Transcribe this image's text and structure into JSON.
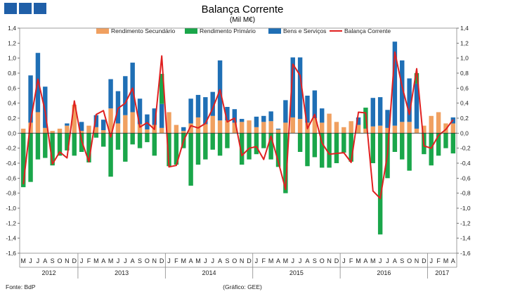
{
  "logo": {
    "color": "#1f5fa8",
    "blocks": 3
  },
  "chart_data": {
    "type": "bar",
    "stacked": true,
    "title": "Balança Corrente",
    "subtitle": "(Mil M€)",
    "ylim": [
      -1.6,
      1.4
    ],
    "yticks": [
      -1.6,
      -1.4,
      -1.2,
      -1.0,
      -0.8,
      -0.6,
      -0.4,
      -0.2,
      0.0,
      0.2,
      0.4,
      0.6,
      0.8,
      1.0,
      1.2,
      1.4
    ],
    "ytick_labels": [
      "-1,6",
      "-1,4",
      "-1,2",
      "-1,0",
      "-0,8",
      "-0,6",
      "-0,4",
      "-0,2",
      "0,0",
      "0,2",
      "0,4",
      "0,6",
      "0,8",
      "1,0",
      "1,2",
      "1,4"
    ],
    "categories": [
      "M",
      "J",
      "J",
      "A",
      "S",
      "O",
      "N",
      "D",
      "J",
      "F",
      "M",
      "A",
      "M",
      "J",
      "J",
      "A",
      "S",
      "O",
      "N",
      "D",
      "J",
      "F",
      "M",
      "A",
      "M",
      "J",
      "J",
      "A",
      "S",
      "O",
      "N",
      "D",
      "J",
      "F",
      "M",
      "A",
      "M",
      "J",
      "J",
      "A",
      "S",
      "O",
      "N",
      "D",
      "J",
      "F",
      "M",
      "A",
      "M",
      "J",
      "J",
      "A",
      "S",
      "O",
      "N",
      "D",
      "J",
      "F",
      "M",
      "A"
    ],
    "years": [
      {
        "label": "2012",
        "start": 0,
        "end": 7
      },
      {
        "label": "2013",
        "start": 8,
        "end": 19
      },
      {
        "label": "2014",
        "start": 20,
        "end": 31
      },
      {
        "label": "2015",
        "start": 32,
        "end": 43
      },
      {
        "label": "2016",
        "start": 44,
        "end": 55
      },
      {
        "label": "2017",
        "start": 56,
        "end": 59
      }
    ],
    "series": [
      {
        "name": "Rendimento Secundário",
        "color": "#f0a060",
        "values": [
          0.06,
          0.14,
          0.28,
          0.07,
          0.03,
          0.06,
          0.1,
          0.38,
          0.03,
          0.1,
          0.08,
          0.04,
          0.33,
          0.13,
          0.24,
          0.28,
          0.12,
          0.05,
          0.11,
          0.07,
          0.28,
          0.11,
          0.03,
          0.13,
          0.21,
          0.12,
          0.23,
          0.17,
          0.17,
          0.14,
          0.15,
          0.17,
          0.08,
          0.15,
          0.16,
          0.05,
          0.14,
          0.21,
          0.19,
          0.14,
          0.2,
          0.14,
          0.26,
          0.15,
          0.08,
          0.16,
          0.11,
          0.06,
          0.09,
          0.1,
          0.07,
          0.1,
          0.15,
          0.15,
          0.06,
          0.1,
          0.23,
          0.28,
          0.13,
          0.13
        ]
      },
      {
        "name": "Bens e Serviços",
        "color": "#1f6fb5",
        "values": [
          0.0,
          0.63,
          0.79,
          0.55,
          0.0,
          0.0,
          0.03,
          0.0,
          0.12,
          0.0,
          0.16,
          0.14,
          0.39,
          0.43,
          0.52,
          0.66,
          0.34,
          0.2,
          0.22,
          0.32,
          0.0,
          0.0,
          0.05,
          0.33,
          0.3,
          0.36,
          0.32,
          0.8,
          0.18,
          0.18,
          0.04,
          0.0,
          0.14,
          0.08,
          0.13,
          0.01,
          0.3,
          0.8,
          0.82,
          0.36,
          0.37,
          0.19,
          0.0,
          0.0,
          0.0,
          0.0,
          0.1,
          0.0,
          0.38,
          0.38,
          0.24,
          1.12,
          0.82,
          0.58,
          0.6,
          0.0,
          0.0,
          0.0,
          0.0,
          0.08
        ]
      },
      {
        "name": "Rendimento Primário",
        "color": "#1aa64a",
        "values": [
          -0.72,
          -0.65,
          -0.35,
          -0.33,
          -0.43,
          -0.3,
          -0.23,
          -0.3,
          -0.25,
          -0.39,
          -0.06,
          -0.18,
          -0.58,
          -0.22,
          -0.38,
          -0.15,
          -0.2,
          -0.12,
          -0.3,
          0.4,
          -0.44,
          -0.42,
          -0.2,
          -0.7,
          -0.42,
          -0.35,
          -0.22,
          -0.3,
          -0.2,
          0.0,
          -0.42,
          -0.35,
          -0.28,
          -0.2,
          -0.35,
          -0.45,
          -0.8,
          0.0,
          -0.25,
          -0.44,
          -0.32,
          -0.46,
          -0.46,
          -0.4,
          -0.26,
          -0.38,
          0.0,
          0.28,
          -0.4,
          -1.35,
          -0.6,
          -0.25,
          -0.35,
          -0.5,
          0.14,
          -0.28,
          -0.43,
          -0.3,
          -0.2,
          -0.27
        ]
      }
    ],
    "line": {
      "name": "Balança Corrente",
      "color": "#e02020",
      "values": [
        -0.68,
        0.15,
        0.72,
        0.29,
        -0.41,
        -0.25,
        -0.33,
        0.43,
        -0.1,
        -0.38,
        0.25,
        0.3,
        -0.05,
        0.33,
        0.4,
        0.6,
        0.08,
        0.14,
        0.05,
        1.03,
        -0.45,
        -0.43,
        -0.1,
        0.1,
        0.07,
        0.13,
        0.33,
        0.58,
        0.15,
        0.2,
        -0.3,
        -0.2,
        -0.18,
        -0.35,
        -0.04,
        -0.38,
        -0.75,
        0.92,
        0.77,
        0.06,
        0.25,
        -0.13,
        -0.28,
        -0.27,
        -0.26,
        -0.39,
        0.28,
        0.27,
        -0.77,
        -0.87,
        -0.28,
        1.08,
        0.62,
        0.25,
        0.86,
        -0.17,
        -0.2,
        -0.03,
        0.05,
        0.18
      ]
    },
    "legend_position": "top-center",
    "footer_left": "Fonte: BdP",
    "footer_center": "(Gráfico: GEE)"
  }
}
